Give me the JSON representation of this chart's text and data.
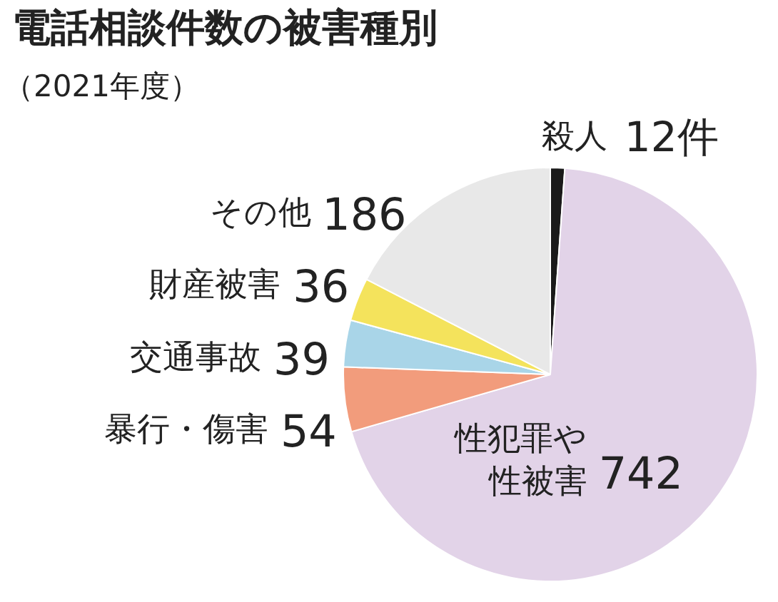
{
  "chart_data": {
    "type": "pie",
    "title": "電話相談件数の被害種別",
    "subtitle": "（2021年度）",
    "categories": [
      "殺人",
      "性犯罪や性被害",
      "暴行・傷害",
      "交通事故",
      "財産被害",
      "その他"
    ],
    "values": [
      12,
      742,
      54,
      39,
      36,
      186
    ],
    "value_labels": [
      "12件",
      "742",
      "54",
      "39",
      "36",
      "186"
    ],
    "colors": [
      "#1a1a1a",
      "#e2d3e8",
      "#f29c7c",
      "#a9d5e8",
      "#f4e35c",
      "#e8e8e8"
    ]
  }
}
